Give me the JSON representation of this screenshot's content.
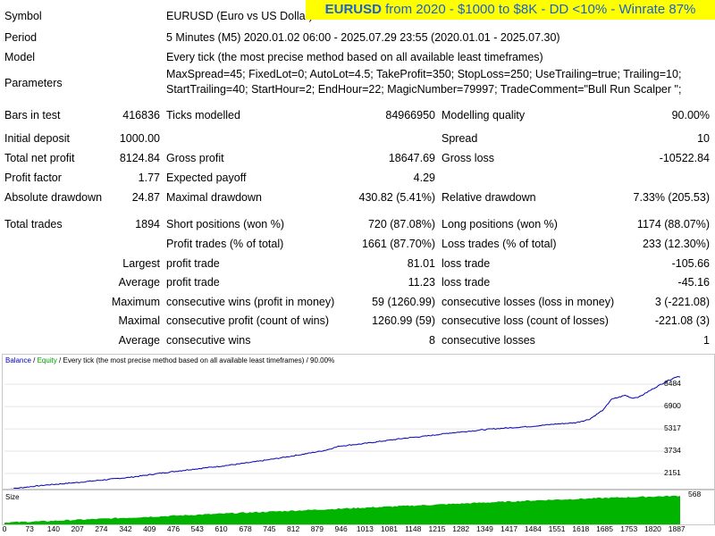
{
  "banner": {
    "symbol": "EURUSD",
    "text": " from 2020 - $1000 to $8K - DD <10% - Winrate 87%"
  },
  "info": [
    {
      "label": "Symbol",
      "value": "EURUSD (Euro vs US Dollar)"
    },
    {
      "label": "Period",
      "value": "5 Minutes (M5) 2020.01.02 06:00 - 2025.07.29 23:55 (2020.01.01 - 2025.07.30)"
    },
    {
      "label": "Model",
      "value": "Every tick (the most precise method based on all available least timeframes)"
    },
    {
      "label": "Parameters",
      "value1": "MaxSpread=45; FixedLot=0; AutoLot=4.5; TakeProfit=350; StopLoss=250; UseTrailing=true; Trailing=10;",
      "value2": "StartTrailing=40; StartHour=2; EndHour=22; MagicNumber=79997; TradeComment=\"Bull Run Scalper \";"
    }
  ],
  "stats": {
    "bars_label": "Bars in test",
    "bars": "416836",
    "ticks_label": "Ticks modelled",
    "ticks": "84966950",
    "quality_label": "Modelling quality",
    "quality": "90.00%",
    "deposit_label": "Initial deposit",
    "deposit": "1000.00",
    "spread_label": "Spread",
    "spread": "10",
    "netprofit_label": "Total net profit",
    "netprofit": "8124.84",
    "grossprofit_label": "Gross profit",
    "grossprofit": "18647.69",
    "grossloss_label": "Gross loss",
    "grossloss": "-10522.84",
    "pf_label": "Profit factor",
    "pf": "1.77",
    "payoff_label": "Expected payoff",
    "payoff": "4.29",
    "absdd_label": "Absolute drawdown",
    "absdd": "24.87",
    "maxdd_label": "Maximal drawdown",
    "maxdd": "430.82 (5.41%)",
    "reldd_label": "Relative drawdown",
    "reldd": "7.33% (205.53)",
    "trades_label": "Total trades",
    "trades": "1894",
    "short_label": "Short positions (won %)",
    "short": "720 (87.08%)",
    "long_label": "Long positions (won %)",
    "long": "1174 (88.07%)",
    "ptrades_label": "Profit trades (% of total)",
    "ptrades": "1661 (87.70%)",
    "ltrades_label": "Loss trades (% of total)",
    "ltrades": "233 (12.30%)",
    "largest_label": "Largest",
    "lp_label": "profit trade",
    "lp": "81.01",
    "ll_label": "loss trade",
    "ll": "-105.66",
    "average_label": "Average",
    "ap_label": "profit trade",
    "ap": "11.23",
    "al_label": "loss trade",
    "al": "-45.16",
    "maximum_label": "Maximum",
    "mcw_label": "consecutive wins (profit in money)",
    "mcw": "59 (1260.99)",
    "mcl_label": "consecutive losses (loss in money)",
    "mcl": "3 (-221.08)",
    "maximal_label": "Maximal",
    "mcp_label": "consecutive profit (count of wins)",
    "mcp": "1260.99 (59)",
    "mclc_label": "consecutive loss (count of losses)",
    "mclc": "-221.08 (3)",
    "average2_label": "Average",
    "acw_label": "consecutive wins",
    "acw": "8",
    "acl_label": "consecutive losses",
    "acl": "1"
  },
  "chart_data": [
    {
      "type": "line",
      "legend": {
        "balance": "Balance",
        "sep1": " / ",
        "equity": "Equity",
        "rest": " / Every tick (the most precise method based on all available least timeframes) / 90.00%"
      },
      "y_ticks": [
        "8484",
        "6900",
        "5317",
        "3734",
        "2151"
      ],
      "x_ticks": [
        "0",
        "73",
        "140",
        "207",
        "274",
        "342",
        "409",
        "476",
        "543",
        "610",
        "678",
        "745",
        "812",
        "879",
        "946",
        "1013",
        "1081",
        "1148",
        "1215",
        "1282",
        "1349",
        "1417",
        "1484",
        "1551",
        "1618",
        "1685",
        "1753",
        "1820",
        "1887"
      ],
      "xlim": [
        0,
        1894
      ],
      "ylim": [
        1200,
        9700
      ],
      "colors": {
        "balance": "#0000b4",
        "equity": "#00a000"
      },
      "series": [
        {
          "name": "Balance",
          "x": [
            0,
            60,
            120,
            200,
            280,
            360,
            440,
            520,
            600,
            680,
            760,
            840,
            900,
            940,
            1000,
            1060,
            1120,
            1180,
            1240,
            1300,
            1360,
            1420,
            1480,
            1540,
            1600,
            1640,
            1680,
            1700,
            1740,
            1760,
            1780,
            1820,
            1860,
            1887,
            1894
          ],
          "y": [
            1000,
            1180,
            1340,
            1500,
            1700,
            1900,
            2180,
            2430,
            2650,
            2900,
            3200,
            3530,
            3800,
            4100,
            4250,
            4450,
            4650,
            4800,
            5000,
            5150,
            5300,
            5400,
            5500,
            5650,
            5750,
            6000,
            6700,
            7400,
            7700,
            7500,
            7600,
            8200,
            8750,
            9050,
            9000
          ]
        }
      ]
    },
    {
      "type": "area",
      "label": "Size",
      "y_ticks": [
        "568"
      ],
      "color": "#00b400",
      "series": [
        {
          "name": "Size",
          "x": [
            0,
            100,
            300,
            500,
            700,
            900,
            1100,
            1300,
            1500,
            1700,
            1894
          ],
          "values": [
            40,
            60,
            120,
            180,
            240,
            300,
            360,
            420,
            480,
            530,
            568
          ]
        }
      ]
    }
  ]
}
